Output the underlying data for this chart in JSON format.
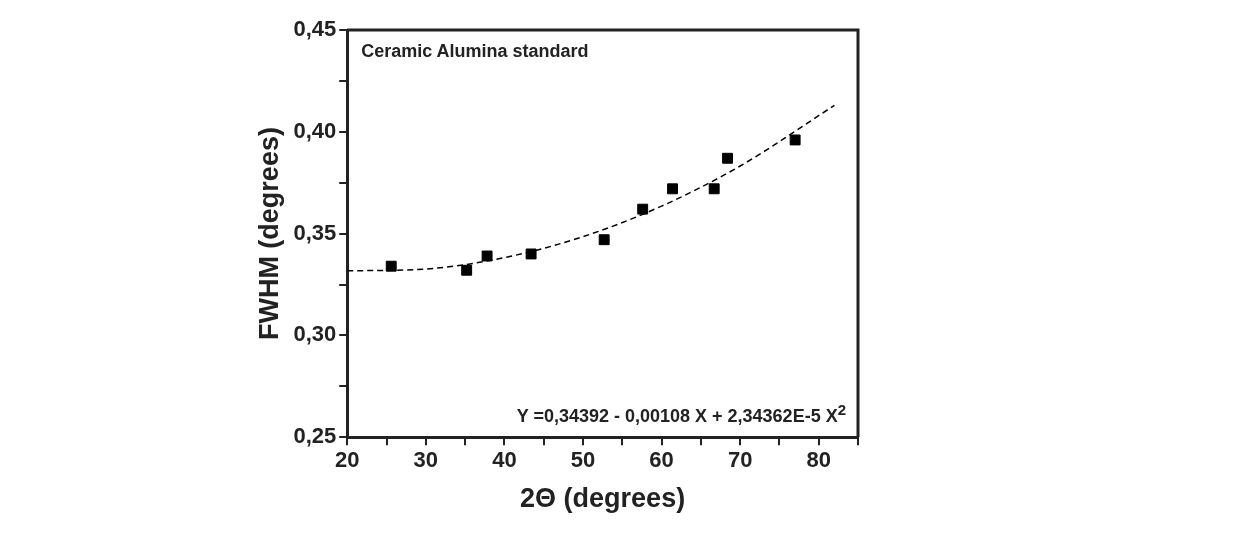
{
  "chart_data": {
    "type": "scatter",
    "xlabel": "2Θ (degrees)",
    "ylabel": "FWHM (degrees)",
    "annotations": [
      "Ceramic Alumina standard",
      "Y =0,34392 - 0,00108 X + 2,34362E-5 X$^{2}$"
    ],
    "x": [
      25.6,
      35.2,
      37.8,
      43.4,
      52.7,
      57.6,
      61.4,
      66.7,
      68.4,
      77.0
    ],
    "series": [
      {
        "color": "#000000",
        "marker": "square",
        "values": [
          0.334,
          0.332,
          0.339,
          0.34,
          0.347,
          0.362,
          0.372,
          0.372,
          0.387,
          0.396
        ]
      },
      {
        "type": "line",
        "color": "#000000",
        "marker": "none",
        "line_style": "dashed",
        "x": [
          20,
          30,
          40,
          50,
          60,
          70,
          82
        ],
        "values": [
          0.3317,
          0.3326,
          0.3382,
          0.3485,
          0.3635,
          0.3832,
          0.413
        ]
      }
    ],
    "xlim": [
      20,
      85
    ],
    "xticks": [
      20,
      {
        "value": 25,
        "label": null
      },
      30,
      {
        "value": 35,
        "label": null
      },
      40,
      {
        "value": 45,
        "label": null
      },
      50,
      {
        "value": 55,
        "label": null
      },
      60,
      {
        "value": 65,
        "label": null
      },
      70,
      {
        "value": 75,
        "label": null
      },
      80,
      {
        "value": 85,
        "label": null
      }
    ],
    "ylim": [
      0.25,
      0.45
    ],
    "yticks": [
      {
        "value": 0.25,
        "label": "0,25"
      },
      {
        "value": 0.275,
        "label": null
      },
      {
        "value": 0.3,
        "label": "0,30"
      },
      {
        "value": 0.325,
        "label": null
      },
      {
        "value": 0.35,
        "label": "0,35"
      },
      {
        "value": 0.375,
        "label": null
      },
      {
        "value": 0.4,
        "label": "0,40"
      },
      {
        "value": 0.425,
        "label": null
      },
      {
        "value": 0.45,
        "label": "0,45"
      }
    ],
    "legend": false
  }
}
